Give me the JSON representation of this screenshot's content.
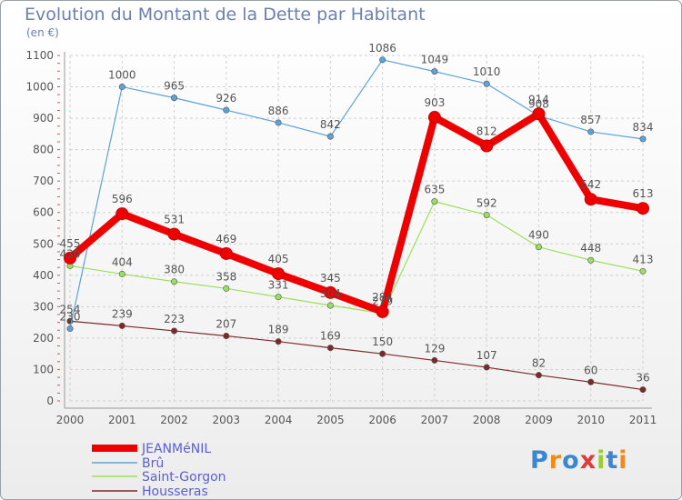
{
  "title": "Evolution du Montant de la Dette par Habitant",
  "unit_label": "(en €)",
  "logo_text": "Proxiti",
  "chart_data": {
    "type": "line",
    "title": "Evolution du Montant de la Dette par Habitant",
    "ylabel": "(en €)",
    "x": [
      2000,
      2001,
      2002,
      2003,
      2004,
      2005,
      2006,
      2007,
      2008,
      2009,
      2010,
      2011
    ],
    "ylim": [
      0,
      1100
    ],
    "yticks": [
      0,
      100,
      200,
      300,
      400,
      500,
      600,
      700,
      800,
      900,
      1000,
      1100
    ],
    "grid": true,
    "legend_position": "bottom-left",
    "series": [
      {
        "name": "JEANMéNIL",
        "color": "#ee0000",
        "values": [
          455,
          596,
          531,
          469,
          405,
          345,
          284,
          903,
          812,
          914,
          642,
          613
        ]
      },
      {
        "name": "Brû",
        "color": "#5fa2d6",
        "values": [
          230,
          1000,
          965,
          926,
          886,
          842,
          1086,
          1049,
          1010,
          908,
          857,
          834
        ]
      },
      {
        "name": "Saint-Gorgon",
        "color": "#9be05a",
        "values": [
          430,
          404,
          380,
          358,
          331,
          304,
          279,
          635,
          592,
          490,
          448,
          413
        ]
      },
      {
        "name": "Housseras",
        "color": "#7a2a2a",
        "values": [
          254,
          239,
          223,
          207,
          189,
          169,
          150,
          129,
          107,
          82,
          60,
          36
        ]
      }
    ]
  }
}
